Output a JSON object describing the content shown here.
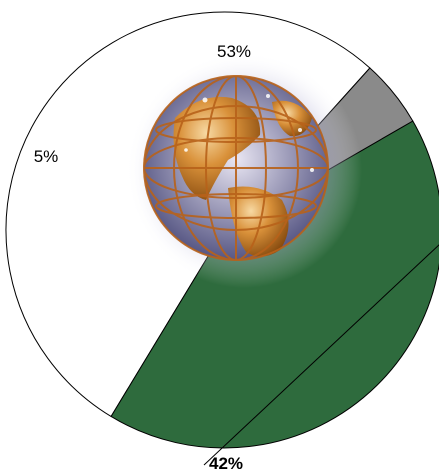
{
  "chart_data": {
    "type": "pie",
    "title": "",
    "labels": [
      "53%",
      "42%",
      "5%"
    ],
    "values": [
      53,
      42,
      5
    ],
    "colors": [
      "#ffffff",
      "#2e6b3d",
      "#8a8a8a"
    ],
    "center_image": "globe-with-continents-icon"
  }
}
